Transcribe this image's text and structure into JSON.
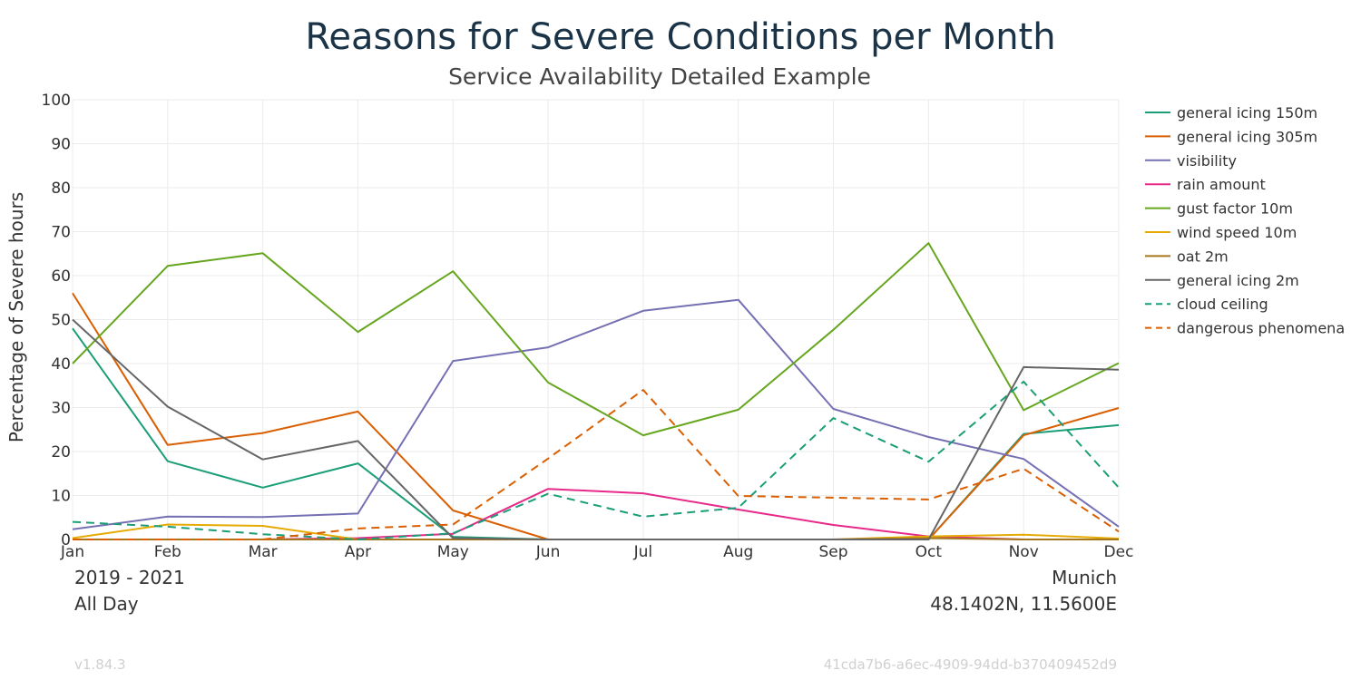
{
  "chart_data": {
    "type": "line",
    "title": "Reasons for Severe Conditions per Month",
    "subtitle": "Service Availability Detailed Example",
    "ylabel": "Percentage of Severe hours",
    "xlabel": "",
    "categories": [
      "Jan",
      "Feb",
      "Mar",
      "Apr",
      "May",
      "Jun",
      "Jul",
      "Aug",
      "Sep",
      "Oct",
      "Nov",
      "Dec"
    ],
    "y_ticks": [
      "0",
      "10",
      "20",
      "30",
      "40",
      "50",
      "60",
      "70",
      "80",
      "90",
      "100"
    ],
    "ylim": [
      0,
      100
    ],
    "grid": true,
    "legend_position": "right",
    "series": [
      {
        "name": "general icing 150m",
        "color": "#1b9e77",
        "dash": false,
        "values": [
          48,
          17.8,
          11.8,
          17.3,
          0.6,
          0,
          0,
          0,
          0,
          0,
          24,
          26
        ]
      },
      {
        "name": "general icing 305m",
        "color": "#d95f02",
        "dash": false,
        "values": [
          56,
          21.5,
          24.2,
          29.1,
          6.6,
          0,
          0,
          0,
          0,
          0,
          23.7,
          29.9
        ]
      },
      {
        "name": "visibility",
        "color": "#7570b3",
        "dash": false,
        "values": [
          2.3,
          5.2,
          5.1,
          5.9,
          40.6,
          43.7,
          52,
          54.5,
          29.7,
          23.3,
          18.3,
          2.9
        ]
      },
      {
        "name": "rain amount",
        "color": "#e7298a",
        "dash": false,
        "values": [
          0,
          0,
          0,
          0.3,
          1.3,
          11.5,
          10.5,
          6.8,
          3.3,
          0.7,
          0,
          0
        ]
      },
      {
        "name": "gust factor 10m",
        "color": "#66a61e",
        "dash": false,
        "values": [
          40,
          62.2,
          65.1,
          47.2,
          61,
          35.7,
          23.7,
          29.5,
          47.7,
          67.4,
          29.4,
          40.1
        ]
      },
      {
        "name": "wind speed 10m",
        "color": "#e6ab02",
        "dash": false,
        "values": [
          0.3,
          3.4,
          3.1,
          0,
          0,
          0,
          0,
          0,
          0,
          0.7,
          1.1,
          0.2
        ]
      },
      {
        "name": "oat 2m",
        "color": "#a6761d",
        "dash": false,
        "values": [
          0,
          0,
          0,
          0,
          0,
          0,
          0,
          0,
          0,
          0.3,
          0,
          0
        ]
      },
      {
        "name": "general icing 2m",
        "color": "#666666",
        "dash": false,
        "values": [
          50,
          30.2,
          18.2,
          22.4,
          0.3,
          0,
          0,
          0,
          0,
          0,
          39.2,
          38.6
        ]
      },
      {
        "name": "cloud ceiling",
        "color": "#1b9e77",
        "dash": true,
        "values": [
          4,
          2.9,
          1.2,
          0,
          1.4,
          10.4,
          5.2,
          7.2,
          27.6,
          17.7,
          35.9,
          11.8
        ]
      },
      {
        "name": "dangerous phenomena",
        "color": "#d95f02",
        "dash": true,
        "values": [
          0,
          0,
          0,
          2.5,
          3.4,
          18.4,
          34,
          9.9,
          9.5,
          9.1,
          16.1,
          1.8
        ]
      }
    ]
  },
  "footer": {
    "period": "2019 - 2021",
    "time_of_day": "All Day",
    "location": "Munich",
    "coordinates": "48.1402N, 11.5600E",
    "version": "v1.84.3",
    "id": "41cda7b6-a6ec-4909-94dd-b370409452d9"
  }
}
